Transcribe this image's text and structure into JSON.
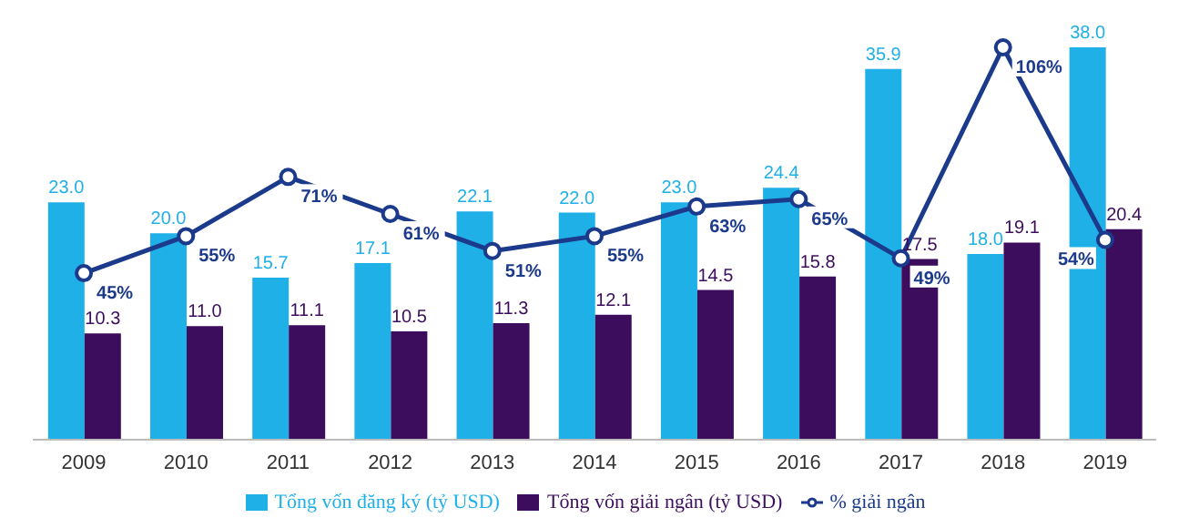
{
  "chart_data": {
    "type": "bar",
    "categories": [
      "2009",
      "2010",
      "2011",
      "2012",
      "2013",
      "2014",
      "2015",
      "2016",
      "2017",
      "2018",
      "2019"
    ],
    "series": [
      {
        "name": "Tổng vốn đăng ký (tỷ USD)",
        "color": "#20b0e8",
        "values": [
          23.0,
          20.0,
          15.7,
          17.1,
          22.1,
          22.0,
          23.0,
          24.4,
          35.9,
          18.0,
          38.0
        ],
        "value_labels": [
          "23.0",
          "20.0",
          "15.7",
          "17.1",
          "22.1",
          "22.0",
          "23.0",
          "24.4",
          "35.9",
          "18.0",
          "38.0"
        ]
      },
      {
        "name": "Tổng vốn giải ngân (tỷ USD)",
        "color": "#3b0d5c",
        "values": [
          10.3,
          11.0,
          11.1,
          10.5,
          11.3,
          12.1,
          14.5,
          15.8,
          17.5,
          19.1,
          20.4
        ],
        "value_labels": [
          "10.3",
          "11.0",
          "11.1",
          "10.5",
          "11.3",
          "12.1",
          "14.5",
          "15.8",
          "17.5",
          "19.1",
          "20.4"
        ]
      },
      {
        "name": "% giải ngân",
        "type": "line",
        "axis": "y2",
        "color": "#1c3a8c",
        "values": [
          45,
          55,
          71,
          61,
          51,
          55,
          63,
          65,
          49,
          106,
          54
        ],
        "value_labels": [
          "45%",
          "55%",
          "71%",
          "61%",
          "51%",
          "55%",
          "63%",
          "65%",
          "49%",
          "106%",
          "54%"
        ]
      }
    ],
    "legend": "bottom",
    "marker": "circle"
  }
}
